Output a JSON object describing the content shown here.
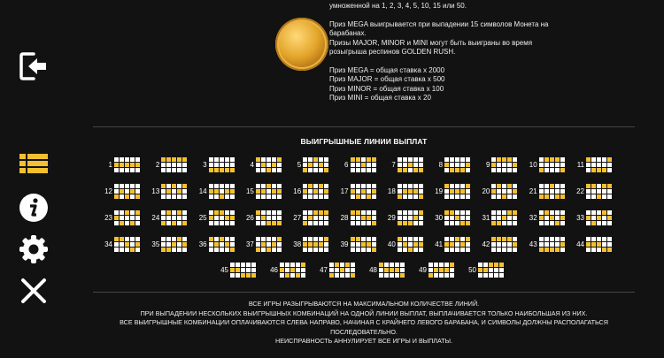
{
  "sidebar": {
    "items": [
      {
        "icon": "exit-icon"
      },
      {
        "icon": "paytable-list-icon",
        "active": true
      },
      {
        "icon": "info-icon"
      },
      {
        "icon": "settings-gear-icon"
      },
      {
        "icon": "close-icon"
      }
    ]
  },
  "colors": {
    "accent": "#f5c030",
    "background": "#121212",
    "cell": "#ffffff"
  },
  "info": {
    "line0": "умноженной на 1, 2, 3, 4, 5, 10, 15 или 50.",
    "line1": "Приз MEGA выигрывается при выпадении 15 символов Монета на",
    "line2": "барабанах.",
    "line3": "Призы MAJOR, MINOR и MINI могут быть выиграны во время",
    "line4": "розыгрыша респинов GOLDEN RUSH.",
    "mega": "Приз MEGA = общая ставка x 2000",
    "major": "Приз MAJOR = общая ставка x 500",
    "minor": "Приз MINOR = общая ставка x 100",
    "mini": "Приз MINI = общая ставка x 20"
  },
  "paylines_title": "ВЫИГРЫШНЫЕ ЛИНИИ ВЫПЛАТ",
  "paylines": [
    {
      "n": "1",
      "rows": [
        1,
        1,
        1,
        1,
        1
      ]
    },
    {
      "n": "2",
      "rows": [
        0,
        0,
        0,
        0,
        0
      ]
    },
    {
      "n": "3",
      "rows": [
        2,
        2,
        2,
        2,
        2
      ]
    },
    {
      "n": "4",
      "rows": [
        0,
        1,
        2,
        1,
        0
      ]
    },
    {
      "n": "5",
      "rows": [
        2,
        1,
        0,
        1,
        2
      ]
    },
    {
      "n": "6",
      "rows": [
        0,
        0,
        1,
        0,
        0
      ]
    },
    {
      "n": "7",
      "rows": [
        2,
        2,
        1,
        2,
        2
      ]
    },
    {
      "n": "8",
      "rows": [
        1,
        2,
        2,
        2,
        1
      ]
    },
    {
      "n": "9",
      "rows": [
        1,
        0,
        0,
        0,
        1
      ]
    },
    {
      "n": "10",
      "rows": [
        2,
        0,
        0,
        0,
        2
      ]
    },
    {
      "n": "11",
      "rows": [
        0,
        2,
        2,
        2,
        0
      ]
    },
    {
      "n": "12",
      "rows": [
        2,
        1,
        2,
        1,
        2
      ]
    },
    {
      "n": "13",
      "rows": [
        0,
        1,
        0,
        1,
        0
      ]
    },
    {
      "n": "14",
      "rows": [
        1,
        1,
        2,
        1,
        1
      ]
    },
    {
      "n": "15",
      "rows": [
        1,
        1,
        0,
        1,
        1
      ]
    },
    {
      "n": "16",
      "rows": [
        1,
        0,
        1,
        0,
        1
      ]
    },
    {
      "n": "17",
      "rows": [
        1,
        2,
        1,
        2,
        1
      ]
    },
    {
      "n": "18",
      "rows": [
        2,
        1,
        1,
        1,
        2
      ]
    },
    {
      "n": "19",
      "rows": [
        0,
        1,
        1,
        1,
        0
      ]
    },
    {
      "n": "20",
      "rows": [
        1,
        0,
        2,
        0,
        1
      ]
    },
    {
      "n": "21",
      "rows": [
        2,
        2,
        0,
        2,
        2
      ]
    },
    {
      "n": "22",
      "rows": [
        0,
        0,
        2,
        0,
        0
      ]
    },
    {
      "n": "23",
      "rows": [
        1,
        2,
        0,
        2,
        0
      ]
    },
    {
      "n": "24",
      "rows": [
        2,
        0,
        2,
        0,
        2
      ]
    },
    {
      "n": "25",
      "rows": [
        1,
        0,
        0,
        1,
        1
      ]
    },
    {
      "n": "26",
      "rows": [
        0,
        1,
        2,
        2,
        2
      ]
    },
    {
      "n": "27",
      "rows": [
        2,
        1,
        0,
        0,
        0
      ]
    },
    {
      "n": "28",
      "rows": [
        0,
        0,
        1,
        1,
        2
      ]
    },
    {
      "n": "29",
      "rows": [
        2,
        2,
        2,
        1,
        0
      ]
    },
    {
      "n": "30",
      "rows": [
        0,
        0,
        1,
        2,
        2
      ]
    },
    {
      "n": "31",
      "rows": [
        2,
        2,
        1,
        0,
        0
      ]
    },
    {
      "n": "32",
      "rows": [
        1,
        0,
        1,
        2,
        1
      ]
    },
    {
      "n": "33",
      "rows": [
        1,
        2,
        1,
        0,
        1
      ]
    },
    {
      "n": "34",
      "rows": [
        0,
        0,
        1,
        2,
        1
      ]
    },
    {
      "n": "35",
      "rows": [
        2,
        2,
        1,
        0,
        1
      ]
    },
    {
      "n": "36",
      "rows": [
        0,
        1,
        0,
        1,
        2
      ]
    },
    {
      "n": "37",
      "rows": [
        2,
        1,
        2,
        1,
        0
      ]
    },
    {
      "n": "38",
      "rows": [
        1,
        1,
        1,
        1,
        0
      ]
    },
    {
      "n": "39",
      "rows": [
        0,
        0,
        1,
        1,
        2
      ]
    },
    {
      "n": "40",
      "rows": [
        0,
        1,
        2,
        1,
        1
      ]
    },
    {
      "n": "41",
      "rows": [
        1,
        1,
        0,
        1,
        0
      ]
    },
    {
      "n": "42",
      "rows": [
        0,
        0,
        0,
        0,
        1
      ]
    },
    {
      "n": "43",
      "rows": [
        2,
        2,
        2,
        2,
        1
      ]
    },
    {
      "n": "44",
      "rows": [
        1,
        1,
        1,
        2,
        2
      ]
    },
    {
      "n": "45",
      "rows": [
        1,
        1,
        2,
        2,
        2
      ]
    },
    {
      "n": "46",
      "rows": [
        1,
        2,
        1,
        2,
        0
      ]
    },
    {
      "n": "47",
      "rows": [
        2,
        0,
        1,
        0,
        2
      ]
    },
    {
      "n": "48",
      "rows": [
        0,
        1,
        1,
        1,
        2
      ]
    },
    {
      "n": "49",
      "rows": [
        2,
        1,
        1,
        1,
        0
      ]
    },
    {
      "n": "50",
      "rows": [
        1,
        1,
        0,
        0,
        0
      ]
    }
  ],
  "footer": {
    "line1": "ВСЕ ИГРЫ РАЗЫГРЫВАЮТСЯ НА МАКСИМАЛЬНОМ КОЛИЧЕСТВЕ ЛИНИЙ.",
    "line2": "ПРИ ВЫПАДЕНИИ НЕСКОЛЬКИХ ВЫИГРЫШНЫХ КОМБИНАЦИЙ НА ОДНОЙ ЛИНИИ ВЫПЛАТ, ВЫПЛАЧИВАЕТСЯ ТОЛЬКО НАИБОЛЬШАЯ ИЗ НИХ.",
    "line3": "ВСЕ ВЫИГРЫШНЫЕ КОМБИНАЦИИ ОПЛАЧИВАЮТСЯ СЛЕВА НАПРАВО, НАЧИНАЯ С КРАЙНЕГО ЛЕВОГО БАРАБАНА, И СИМВОЛЫ ДОЛЖНЫ РАСПОЛАГАТЬСЯ ПОСЛЕДОВАТЕЛЬНО.",
    "line4": "НЕИСПРАВНОСТЬ АННУЛИРУЕТ ВСЕ ИГРЫ И ВЫПЛАТЫ."
  }
}
